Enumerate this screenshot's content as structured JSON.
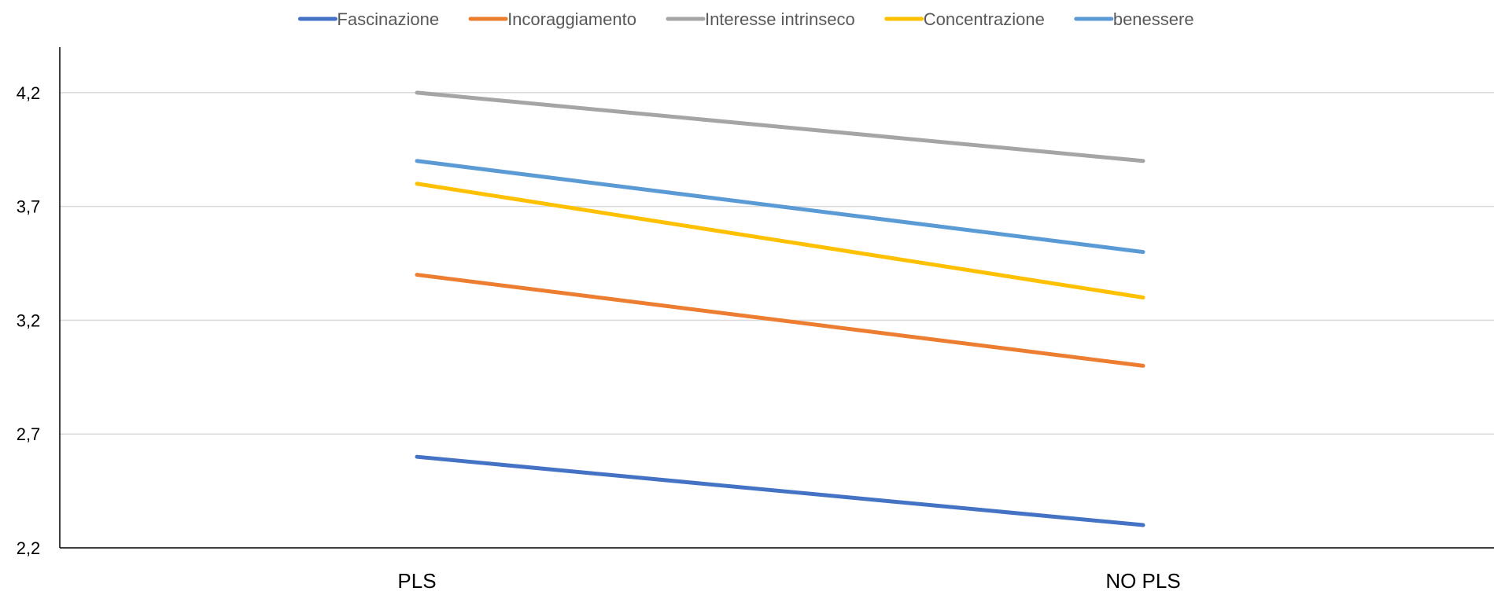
{
  "chart_data": {
    "type": "line",
    "categories": [
      "PLS",
      "NO PLS"
    ],
    "series": [
      {
        "name": "Fascinazione",
        "values": [
          2.6,
          2.3
        ],
        "color": "#4472C4"
      },
      {
        "name": "Incoraggiamento",
        "values": [
          3.4,
          3.0
        ],
        "color": "#ED7D31"
      },
      {
        "name": "Interesse intrinseco",
        "values": [
          4.2,
          3.9
        ],
        "color": "#A5A5A5"
      },
      {
        "name": "Concentrazione",
        "values": [
          3.8,
          3.3
        ],
        "color": "#FFC000"
      },
      {
        "name": "benessere",
        "values": [
          3.9,
          3.5
        ],
        "color": "#5B9BD5"
      }
    ],
    "yticks": [
      "2,2",
      "2,7",
      "3,2",
      "3,7",
      "4,2"
    ],
    "ytick_values": [
      2.2,
      2.7,
      3.2,
      3.7,
      4.2
    ],
    "ylim": [
      2.2,
      4.4
    ],
    "grid": true,
    "legend_position": "top",
    "title": "",
    "xlabel": "",
    "ylabel": ""
  }
}
